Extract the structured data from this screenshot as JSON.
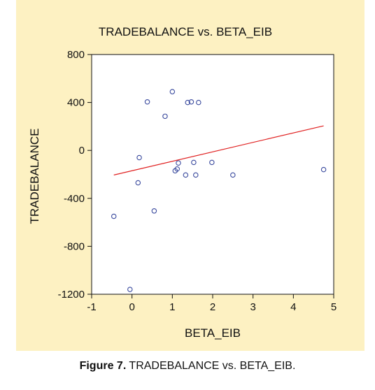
{
  "figure": {
    "background": "#fdf1c2",
    "caption_label": "Figure 7.",
    "caption_text": " TRADEBALANCE vs. BETA_EIB."
  },
  "chart_data": {
    "type": "scatter",
    "title": "TRADEBALANCE vs. BETA_EIB",
    "xlabel": "BETA_EIB",
    "ylabel": "TRADEBALANCE",
    "xlim": [
      -1,
      5
    ],
    "ylim": [
      -1200,
      800
    ],
    "xticks": [
      -1,
      0,
      1,
      2,
      3,
      4,
      5
    ],
    "yticks": [
      800,
      400,
      0,
      -400,
      -800,
      -1200
    ],
    "grid": false,
    "legend": "none",
    "series": [
      {
        "kind": "points",
        "marker": "open-circle",
        "color": "#3a4a9e",
        "points": [
          {
            "x": -0.45,
            "y": -550
          },
          {
            "x": -0.05,
            "y": -1160
          },
          {
            "x": 0.15,
            "y": -270
          },
          {
            "x": 0.18,
            "y": -60
          },
          {
            "x": 0.38,
            "y": 405
          },
          {
            "x": 0.55,
            "y": -505
          },
          {
            "x": 0.82,
            "y": 285
          },
          {
            "x": 1.0,
            "y": 490
          },
          {
            "x": 1.07,
            "y": -170
          },
          {
            "x": 1.12,
            "y": -155
          },
          {
            "x": 1.15,
            "y": -105
          },
          {
            "x": 1.33,
            "y": -205
          },
          {
            "x": 1.38,
            "y": 400
          },
          {
            "x": 1.47,
            "y": 405
          },
          {
            "x": 1.53,
            "y": -100
          },
          {
            "x": 1.58,
            "y": -205
          },
          {
            "x": 1.65,
            "y": 400
          },
          {
            "x": 1.98,
            "y": -100
          },
          {
            "x": 2.5,
            "y": -205
          },
          {
            "x": 4.75,
            "y": -160
          }
        ]
      },
      {
        "kind": "fit-line",
        "color": "#e02020",
        "points": [
          {
            "x": -0.45,
            "y": -205
          },
          {
            "x": 4.75,
            "y": 205
          }
        ]
      }
    ]
  }
}
